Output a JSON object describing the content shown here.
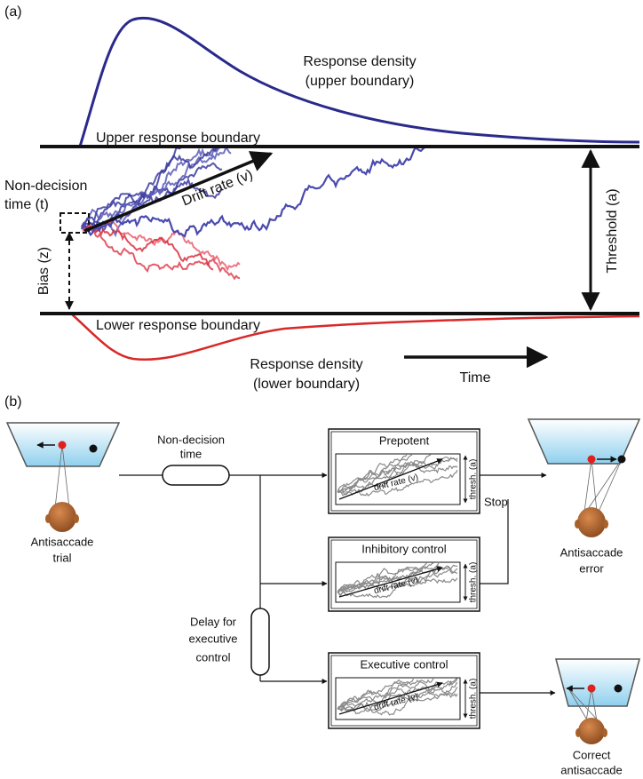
{
  "panel_a": {
    "label": "(a)",
    "upper_density": [
      "Response density",
      "(upper boundary)"
    ],
    "upper_boundary": "Upper response boundary",
    "non_decision": [
      "Non-decision",
      "time (t)"
    ],
    "drift": "Drift rate (v)",
    "bias": "Bias (z)",
    "threshold": "Threshold (a)",
    "lower_boundary": "Lower response boundary",
    "lower_density": [
      "Response density",
      "(lower boundary)"
    ],
    "time": "Time"
  },
  "panel_b": {
    "label": "(b)",
    "trial": [
      "Antisaccade",
      "trial"
    ],
    "non_decision": [
      "Non-decision",
      "time"
    ],
    "delay": [
      "Delay for",
      "executive",
      "control"
    ],
    "boxes": [
      {
        "title": "Prepotent",
        "drift": "drift rate (v)",
        "thresh": "thresh. (a)"
      },
      {
        "title": "Inhibitory control",
        "drift": "drift rate (v)",
        "thresh": "thresh. (a)"
      },
      {
        "title": "Executive control",
        "drift": "drift rate (v)",
        "thresh": "thresh. (a)"
      }
    ],
    "stop": "Stop",
    "error": [
      "Antisaccade",
      "error"
    ],
    "correct": [
      "Correct",
      "antisaccade"
    ]
  }
}
